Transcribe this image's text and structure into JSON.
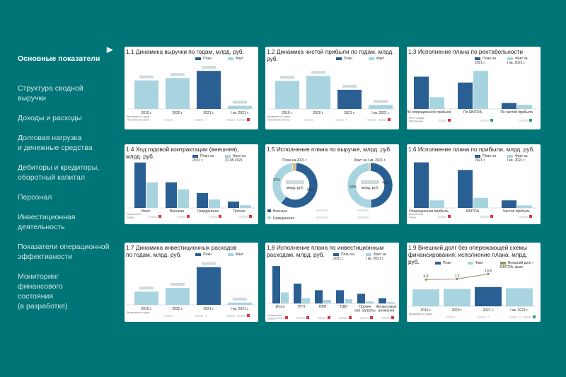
{
  "sidebar": {
    "items": [
      {
        "label": "Основные показатели",
        "active": true
      },
      {
        "label": "Структура сводной\nвыручки"
      },
      {
        "label": "Доходы и расходы"
      },
      {
        "label": "Долговая нагрузка\nи денежные средства"
      },
      {
        "label": "Дебиторы и кредиторы,\nоборотный капитал"
      },
      {
        "label": "Персонал"
      },
      {
        "label": "Инвестиционная\nдеятельность"
      },
      {
        "label": "Показатели операционной\nэффективности"
      },
      {
        "label": "Мониторинг\nфинансового\nсостояния\n(в разработке)"
      }
    ],
    "active_icon": "play-arrow-icon"
  },
  "colors": {
    "background": "#007577",
    "plan": "#2a5f93",
    "fact": "#a8d4e0",
    "up": "#2e9d6e",
    "down": "#e0333c"
  },
  "cards": [
    {
      "id": "c11",
      "title": "1.1 Динамика выручки по годам, млрд. руб.",
      "legend": [
        "План",
        "Факт"
      ],
      "footer": [
        "Динамика по годам",
        "Исполнение плана"
      ],
      "chart_data": {
        "type": "bar",
        "categories": [
          "2019 г.",
          "2020 г.",
          "2021 г.",
          "I кв. 2021 г."
        ],
        "series": [
          {
            "name": "План",
            "values": [
              null,
              null,
              2.4,
              null
            ]
          },
          {
            "name": "Факт",
            "values": [
              1.8,
              1.95,
              null,
              0.2
            ]
          }
        ]
      }
    },
    {
      "id": "c12",
      "title": "1.2 Динамика чистой прибыли по годам, млрд. руб.",
      "legend": [
        "План",
        "Факт"
      ],
      "footer": [
        "Динамика по годам",
        "Исполнение плана"
      ],
      "chart_data": {
        "type": "bar",
        "categories": [
          "2019 г.",
          "2020 г.",
          "2021 г.",
          "I кв. 2021 г."
        ],
        "series": [
          {
            "name": "План",
            "values": [
              null,
              null,
              0.58,
              null
            ]
          },
          {
            "name": "Факт",
            "values": [
              0.85,
              1.0,
              null,
              0.12
            ]
          }
        ]
      }
    },
    {
      "id": "c13",
      "title": "1.3 Исполнение плана по рентабельности",
      "legend": [
        "План на\n2021 г.",
        "Факт за\nI кв. 2021 г."
      ],
      "footer": [
        "Рент. продаж",
        "Исполнение"
      ],
      "chart_data": {
        "type": "bar",
        "categories": [
          "По операционной прибыли",
          "По EBITDA",
          "По чистой прибыли"
        ],
        "series": [
          {
            "name": "План на 2021 г.",
            "values": [
              0.55,
              0.45,
              0.1
            ]
          },
          {
            "name": "Факт за I кв. 2021 г.",
            "values": [
              0.2,
              0.65,
              0.07
            ]
          }
        ]
      }
    },
    {
      "id": "c14",
      "title": "1.4 Ход годовой контрактации (внешняя), млрд. руб.",
      "legend": [
        "План на\n2021 г.",
        "Факт на\n31.05.2021"
      ],
      "footer": [
        "Исполнение",
        "плана"
      ],
      "chart_data": {
        "type": "bar",
        "categories": [
          "Итого",
          "Военная",
          "Гражданская",
          "Прочие"
        ],
        "series": [
          {
            "name": "План на 2021 г.",
            "values": [
              0.85,
              0.48,
              0.28,
              0.12
            ]
          },
          {
            "name": "Факт на 31.05.2021",
            "values": [
              0.48,
              0.35,
              0.16,
              0.05
            ]
          }
        ]
      }
    },
    {
      "id": "c15",
      "title": "1.5 Исполнение плана по выручке, млрд. руб.",
      "subtitles": [
        "План на 2021 г.",
        "Факт за I кв. 2021 г."
      ],
      "center_unit": "млрд. руб.",
      "legend": [
        "Военная",
        "Гражданская"
      ],
      "chart_data": {
        "type": "pie",
        "charts": [
          {
            "name": "План на 2021 г.",
            "slices": [
              {
                "label": "Военная",
                "value": 60
              },
              {
                "label": "Гражданская",
                "value": 37
              },
              {
                "label": "Прочие",
                "value": 3
              }
            ]
          },
          {
            "name": "Факт за I кв. 2021 г.",
            "slices": [
              {
                "label": "Военная",
                "value": 49
              },
              {
                "label": "Гражданская",
                "value": 50
              },
              {
                "label": "Прочие",
                "value": 1
              }
            ]
          }
        ]
      },
      "pct_labels": [
        "37%",
        "60%",
        "50%",
        "49%"
      ]
    },
    {
      "id": "c16",
      "title": "1.6 Исполнение плана по прибыли, млрд. руб.",
      "legend": [
        "План на\n2021 г.",
        "Факт за\nI кв. 2021 г."
      ],
      "footer": [
        "Исполнение",
        "плана"
      ],
      "chart_data": {
        "type": "bar",
        "categories": [
          "Операционная прибыль",
          "EBITDA",
          "Чистая прибыль"
        ],
        "series": [
          {
            "name": "План на 2021 г.",
            "values": [
              0.9,
              0.75,
              0.15
            ]
          },
          {
            "name": "Факт за I кв. 2021 г.",
            "values": [
              0.15,
              0.2,
              0.05
            ]
          }
        ]
      }
    },
    {
      "id": "c17",
      "title": "1.7 Динамика инвестиционных расходов\nпо годам, млрд. руб.",
      "legend": [
        "План",
        "Факт"
      ],
      "footer": [
        "Динамика по годам"
      ],
      "chart_data": {
        "type": "bar",
        "categories": [
          "2019 г.",
          "2020 г.",
          "2021 г.",
          "I кв. 2021 г."
        ],
        "series": [
          {
            "name": "План",
            "values": [
              null,
              null,
              1.0,
              null
            ]
          },
          {
            "name": "Факт",
            "values": [
              0.35,
              0.45,
              null,
              0.06
            ]
          }
        ]
      }
    },
    {
      "id": "c18",
      "title": "1.8 Исполнение плана по инвестиционным\nрасходам, млрд. руб.",
      "legend": [
        "План на\n2021 г.",
        "Факт за\nI кв. 2021 г."
      ],
      "footer": [
        "Исполнение",
        "плана"
      ],
      "chart_data": {
        "type": "bar",
        "categories": [
          "Итого",
          "ПГН",
          "ПВН",
          "ПДН",
          "Прочие\nкап. затраты",
          "Финансовые\nвложения"
        ],
        "series": [
          {
            "name": "План на 2021 г.",
            "values": [
              0.85,
              0.45,
              0.3,
              0.3,
              0.22,
              0.12
            ]
          },
          {
            "name": "Факт за I кв. 2021 г.",
            "values": [
              0.25,
              0.12,
              0.08,
              0.1,
              0.05,
              0.03
            ]
          }
        ]
      }
    },
    {
      "id": "c19",
      "title": "1.9 Внешний долг без опережающей схемы\nфинансирования: исполнение плана, млрд. руб.",
      "legend": [
        "План",
        "Факт",
        "Внешний долг /\nEBITDA, факт"
      ],
      "footer": [
        "Динамика по годам"
      ],
      "line_labels": [
        "6,9",
        "7,3",
        "10,8"
      ],
      "chart_data": {
        "type": "bar",
        "categories": [
          "2019 г.",
          "2020 г.",
          "2021 г.",
          "I кв. 2021 г."
        ],
        "series": [
          {
            "name": "План",
            "values": [
              null,
              null,
              0.8,
              null
            ]
          },
          {
            "name": "Факт",
            "values": [
              0.7,
              0.72,
              null,
              0.75
            ]
          },
          {
            "name": "Внешний долг / EBITDA, факт",
            "values": [
              6.9,
              7.3,
              10.8,
              null
            ]
          }
        ]
      }
    }
  ]
}
